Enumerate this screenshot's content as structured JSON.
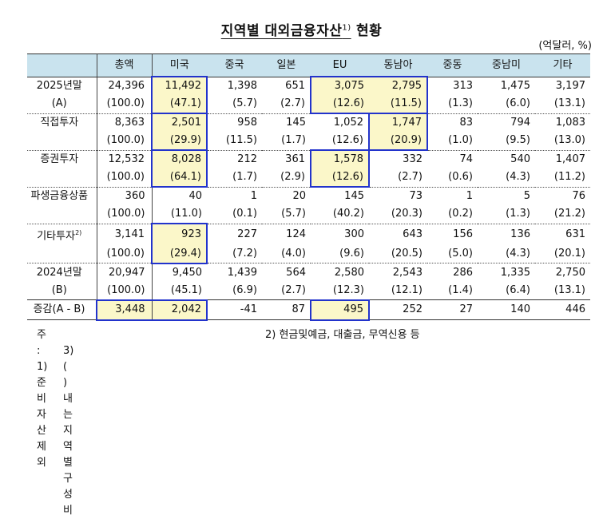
{
  "title": "지역별 대외금융자산",
  "title_sup": "1)",
  "title_suffix": "현황",
  "unit": "(억달러, %)",
  "columns": [
    "",
    "총액",
    "미국",
    "중국",
    "일본",
    "EU",
    "동남아",
    "중동",
    "중남미",
    "기타"
  ],
  "rows": [
    {
      "label": "2025년말",
      "sup": "",
      "vals": [
        "24,396",
        "11,492",
        "1,398",
        "651",
        "3,075",
        "2,795",
        "313",
        "1,475",
        "3,197"
      ]
    },
    {
      "label": "(A)",
      "sup": "",
      "vals": [
        "(100.0)",
        "(47.1)",
        "(5.7)",
        "(2.7)",
        "(12.6)",
        "(11.5)",
        "(1.3)",
        "(6.0)",
        "(13.1)"
      ]
    },
    {
      "label": "직접투자",
      "sup": "",
      "vals": [
        "8,363",
        "2,501",
        "958",
        "145",
        "1,052",
        "1,747",
        "83",
        "794",
        "1,083"
      ]
    },
    {
      "label": "",
      "sup": "",
      "vals": [
        "(100.0)",
        "(29.9)",
        "(11.5)",
        "(1.7)",
        "(12.6)",
        "(20.9)",
        "(1.0)",
        "(9.5)",
        "(13.0)"
      ]
    },
    {
      "label": "증권투자",
      "sup": "",
      "vals": [
        "12,532",
        "8,028",
        "212",
        "361",
        "1,578",
        "332",
        "74",
        "540",
        "1,407"
      ]
    },
    {
      "label": "",
      "sup": "",
      "vals": [
        "(100.0)",
        "(64.1)",
        "(1.7)",
        "(2.9)",
        "(12.6)",
        "(2.7)",
        "(0.6)",
        "(4.3)",
        "(11.2)"
      ]
    },
    {
      "label": "파생금융상품",
      "sup": "",
      "vals": [
        "360",
        "40",
        "1",
        "20",
        "145",
        "73",
        "1",
        "5",
        "76"
      ]
    },
    {
      "label": "",
      "sup": "",
      "vals": [
        "(100.0)",
        "(11.0)",
        "(0.1)",
        "(5.7)",
        "(40.2)",
        "(20.3)",
        "(0.2)",
        "(1.3)",
        "(21.2)"
      ]
    },
    {
      "label": "기타투자",
      "sup": "2)",
      "vals": [
        "3,141",
        "923",
        "227",
        "124",
        "300",
        "643",
        "156",
        "136",
        "631"
      ]
    },
    {
      "label": "",
      "sup": "",
      "vals": [
        "(100.0)",
        "(29.4)",
        "(7.2)",
        "(4.0)",
        "(9.6)",
        "(20.5)",
        "(5.0)",
        "(4.3)",
        "(20.1)"
      ]
    },
    {
      "label": "2024년말",
      "sup": "",
      "vals": [
        "20,947",
        "9,450",
        "1,439",
        "564",
        "2,580",
        "2,543",
        "286",
        "1,335",
        "2,750"
      ]
    },
    {
      "label": "(B)",
      "sup": "",
      "vals": [
        "(100.0)",
        "(45.1)",
        "(6.9)",
        "(2.7)",
        "(12.3)",
        "(12.1)",
        "(1.4)",
        "(6.4)",
        "(13.1)"
      ]
    },
    {
      "label": "증감(A - B)",
      "sup": "",
      "vals": [
        "3,448",
        "2,042",
        "-41",
        "87",
        "495",
        "252",
        "27",
        "140",
        "446"
      ]
    }
  ],
  "notes": {
    "note1": "주 : 1) 준비자산 제외",
    "note2": "2) 현금및예금, 대출금, 무역신용 등",
    "note3": "3) (   ) 내는 지역별 구성비"
  },
  "colors": {
    "header_bg": "#c9e3ee",
    "highlight_bg": "#fbf7c9",
    "box_border": "#2233cc"
  }
}
